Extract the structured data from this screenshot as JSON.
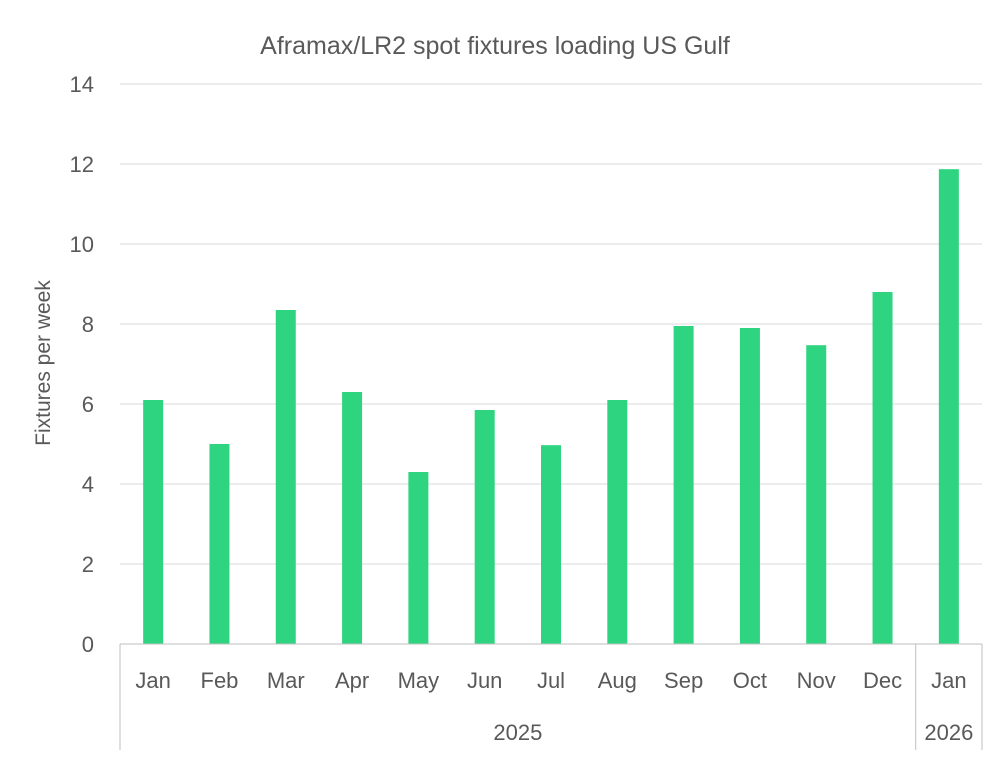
{
  "chart_data": {
    "type": "bar",
    "title": "Aframax/LR2 spot fixtures loading US Gulf",
    "ylabel": "Fixtures per week",
    "xlabel": "",
    "ylim": [
      0,
      14
    ],
    "yticks": [
      0,
      2,
      4,
      6,
      8,
      10,
      12,
      14
    ],
    "grid": true,
    "legend": "none",
    "bar_color": "#2ed47f",
    "categories": [
      "Jan",
      "Feb",
      "Mar",
      "Apr",
      "May",
      "Jun",
      "Jul",
      "Aug",
      "Sep",
      "Oct",
      "Nov",
      "Dec",
      "Jan"
    ],
    "groups": [
      {
        "label": "2025",
        "count": 12
      },
      {
        "label": "2026",
        "count": 1
      }
    ],
    "values": [
      6.1,
      5.0,
      8.35,
      6.3,
      4.3,
      5.85,
      4.97,
      6.1,
      7.95,
      7.9,
      7.47,
      8.8,
      11.87
    ]
  }
}
